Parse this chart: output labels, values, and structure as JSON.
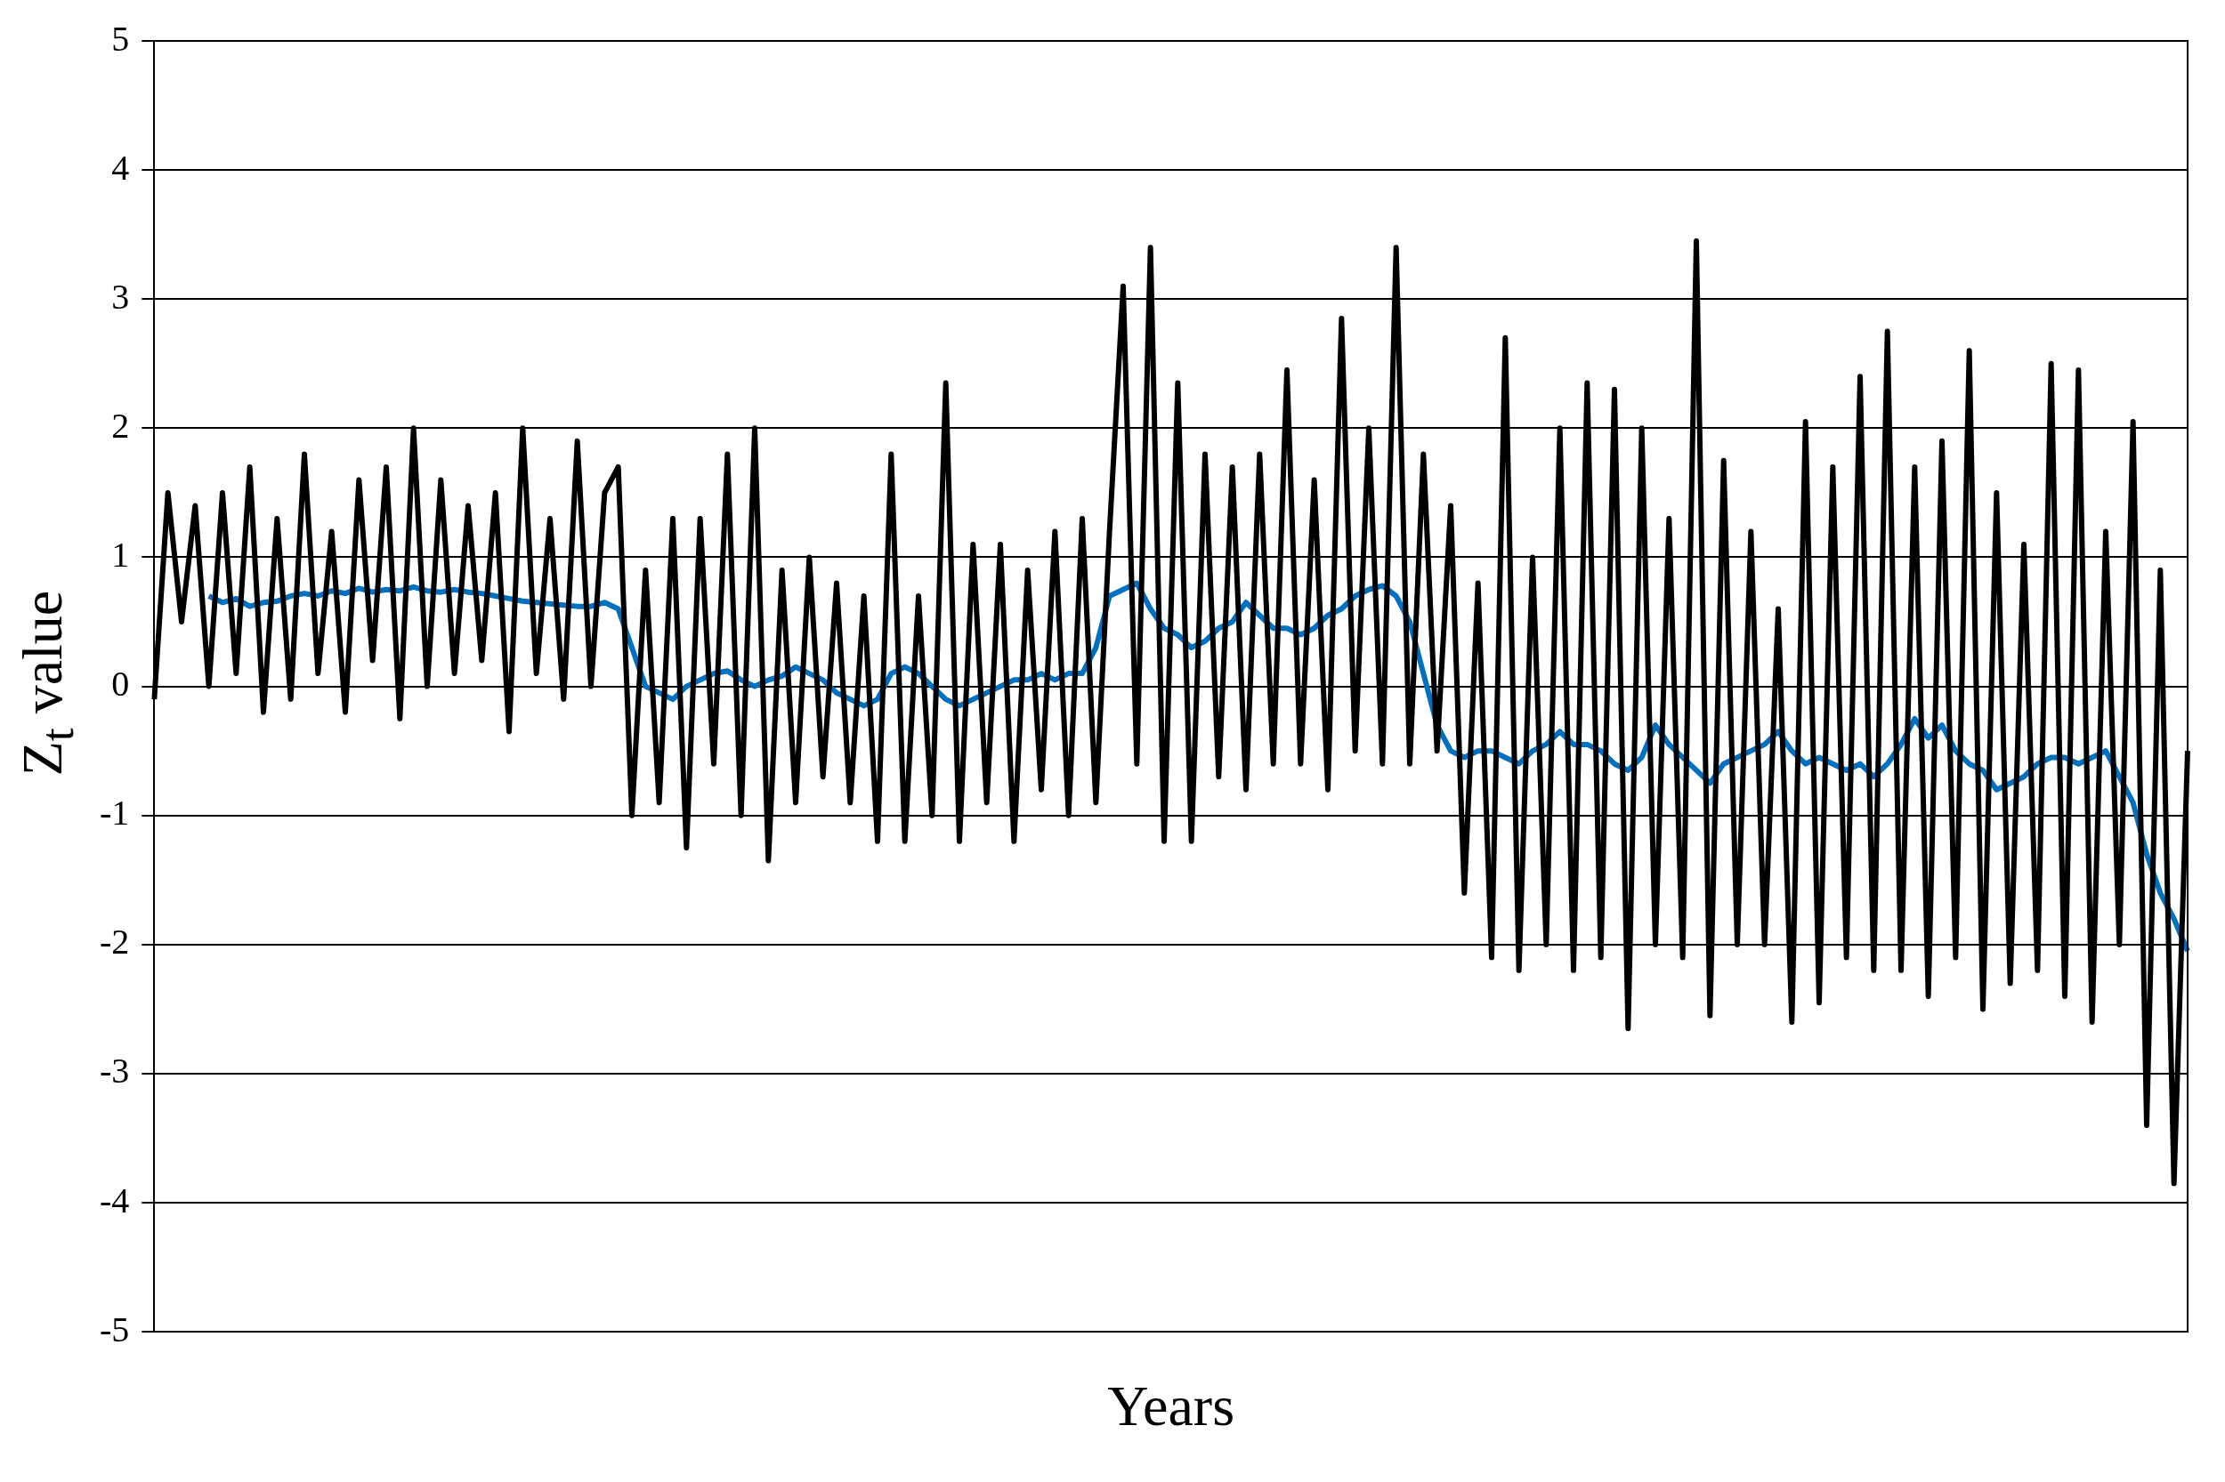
{
  "chart_data": {
    "type": "line",
    "xlabel": "Years",
    "ylabel": "Z$_{t}$ value",
    "ylim": [
      -5,
      5
    ],
    "yticks": [
      -5,
      -4,
      -3,
      -2,
      -1,
      0,
      1,
      2,
      3,
      4,
      5
    ],
    "grid": "y",
    "legend": false,
    "marker": "none",
    "line_style": "solid",
    "tick_labels": "y",
    "categories": [
      null,
      null,
      null,
      null,
      null,
      null,
      null,
      null,
      null,
      null,
      null,
      null,
      null,
      null,
      null,
      null,
      null,
      null,
      null,
      null,
      null,
      null,
      null,
      null,
      null,
      null,
      null,
      null,
      null,
      null,
      null,
      null,
      null,
      null,
      null,
      null,
      null,
      null,
      null,
      null,
      null,
      null,
      null,
      null,
      null,
      null,
      null,
      null,
      null,
      null,
      null,
      null,
      null,
      null,
      null,
      null,
      null,
      null,
      null,
      null,
      null,
      null,
      null,
      null,
      null,
      null,
      null,
      null,
      null,
      null,
      null,
      null,
      null,
      null,
      null,
      null,
      null,
      null,
      null,
      null,
      null,
      null,
      null,
      null,
      null,
      null,
      null,
      null,
      null,
      null,
      null,
      null,
      null,
      null,
      null,
      null,
      null,
      null,
      null,
      null,
      null,
      null,
      null,
      null,
      null,
      null,
      null,
      null,
      null,
      null,
      null,
      null,
      null,
      null,
      null,
      null,
      null,
      null,
      null,
      null,
      null,
      null,
      null,
      null,
      null,
      null,
      null,
      null,
      null,
      null,
      null,
      null,
      null,
      null,
      null,
      null,
      null,
      null,
      null,
      null,
      null,
      null,
      null,
      null,
      null,
      null,
      null,
      null,
      null,
      null
    ],
    "series": [
      {
        "color": "#000000",
        "values": [
          -0.1,
          1.5,
          0.5,
          1.4,
          0.0,
          1.5,
          0.1,
          1.7,
          -0.2,
          1.3,
          -0.1,
          1.8,
          0.1,
          1.2,
          -0.2,
          1.6,
          0.2,
          1.7,
          -0.25,
          2.0,
          0.0,
          1.6,
          0.1,
          1.4,
          0.2,
          1.5,
          -0.35,
          2.0,
          0.1,
          1.3,
          -0.1,
          1.9,
          0.0,
          1.5,
          1.7,
          -1.0,
          0.9,
          -0.9,
          1.3,
          -1.25,
          1.3,
          -0.6,
          1.8,
          -1.0,
          2.0,
          -1.35,
          0.9,
          -0.9,
          1.0,
          -0.7,
          0.8,
          -0.9,
          0.7,
          -1.2,
          1.8,
          -1.2,
          0.7,
          -1.0,
          2.35,
          -1.2,
          1.1,
          -0.9,
          1.1,
          -1.2,
          0.9,
          -0.8,
          1.2,
          -1.0,
          1.3,
          -0.9,
          1.2,
          3.1,
          -0.6,
          3.4,
          -1.2,
          2.35,
          -1.2,
          1.8,
          -0.7,
          1.7,
          -0.8,
          1.8,
          -0.6,
          2.45,
          -0.6,
          1.6,
          -0.8,
          2.85,
          -0.5,
          2.0,
          -0.6,
          3.4,
          -0.6,
          1.8,
          -0.5,
          1.4,
          -1.6,
          0.8,
          -2.1,
          2.7,
          -2.2,
          1.0,
          -2.0,
          2.0,
          -2.2,
          2.35,
          -2.1,
          2.3,
          -2.65,
          2.0,
          -2.0,
          1.3,
          -2.1,
          3.45,
          -2.55,
          1.75,
          -2.0,
          1.2,
          -2.0,
          0.6,
          -2.6,
          2.05,
          -2.45,
          1.7,
          -2.1,
          2.4,
          -2.2,
          2.75,
          -2.2,
          1.7,
          -2.4,
          1.9,
          -2.1,
          2.6,
          -2.5,
          1.5,
          -2.3,
          1.1,
          -2.2,
          2.5,
          -2.4,
          2.45,
          -2.6,
          1.2,
          -2.0,
          2.05,
          -3.4,
          0.9,
          -3.85,
          -0.5
        ]
      },
      {
        "color": "#0070c0",
        "values": [
          null,
          null,
          null,
          null,
          0.7,
          0.65,
          0.68,
          0.62,
          0.65,
          0.66,
          0.7,
          0.72,
          0.7,
          0.74,
          0.72,
          0.76,
          0.73,
          0.75,
          0.74,
          0.77,
          0.74,
          0.73,
          0.75,
          0.73,
          0.72,
          0.7,
          0.68,
          0.66,
          0.65,
          0.64,
          0.63,
          0.62,
          0.62,
          0.65,
          0.6,
          0.3,
          0.0,
          -0.05,
          -0.1,
          0.0,
          0.05,
          0.1,
          0.12,
          0.05,
          0.0,
          0.05,
          0.08,
          0.15,
          0.1,
          0.05,
          -0.05,
          -0.1,
          -0.15,
          -0.1,
          0.1,
          0.15,
          0.1,
          0.0,
          -0.1,
          -0.15,
          -0.1,
          -0.05,
          0.0,
          0.05,
          0.05,
          0.1,
          0.05,
          0.1,
          0.1,
          0.3,
          0.7,
          0.75,
          0.8,
          0.6,
          0.45,
          0.4,
          0.3,
          0.35,
          0.45,
          0.5,
          0.65,
          0.55,
          0.45,
          0.45,
          0.4,
          0.45,
          0.55,
          0.6,
          0.7,
          0.75,
          0.78,
          0.7,
          0.5,
          0.1,
          -0.3,
          -0.5,
          -0.55,
          -0.5,
          -0.5,
          -0.55,
          -0.6,
          -0.5,
          -0.45,
          -0.35,
          -0.45,
          -0.45,
          -0.5,
          -0.6,
          -0.65,
          -0.55,
          -0.3,
          -0.45,
          -0.55,
          -0.65,
          -0.75,
          -0.6,
          -0.55,
          -0.5,
          -0.45,
          -0.35,
          -0.5,
          -0.6,
          -0.55,
          -0.6,
          -0.65,
          -0.6,
          -0.7,
          -0.6,
          -0.45,
          -0.25,
          -0.4,
          -0.3,
          -0.5,
          -0.6,
          -0.65,
          -0.8,
          -0.75,
          -0.7,
          -0.6,
          -0.55,
          -0.55,
          -0.6,
          -0.55,
          -0.5,
          -0.7,
          -0.9,
          -1.3,
          -1.6,
          -1.8,
          -2.05
        ]
      }
    ]
  }
}
